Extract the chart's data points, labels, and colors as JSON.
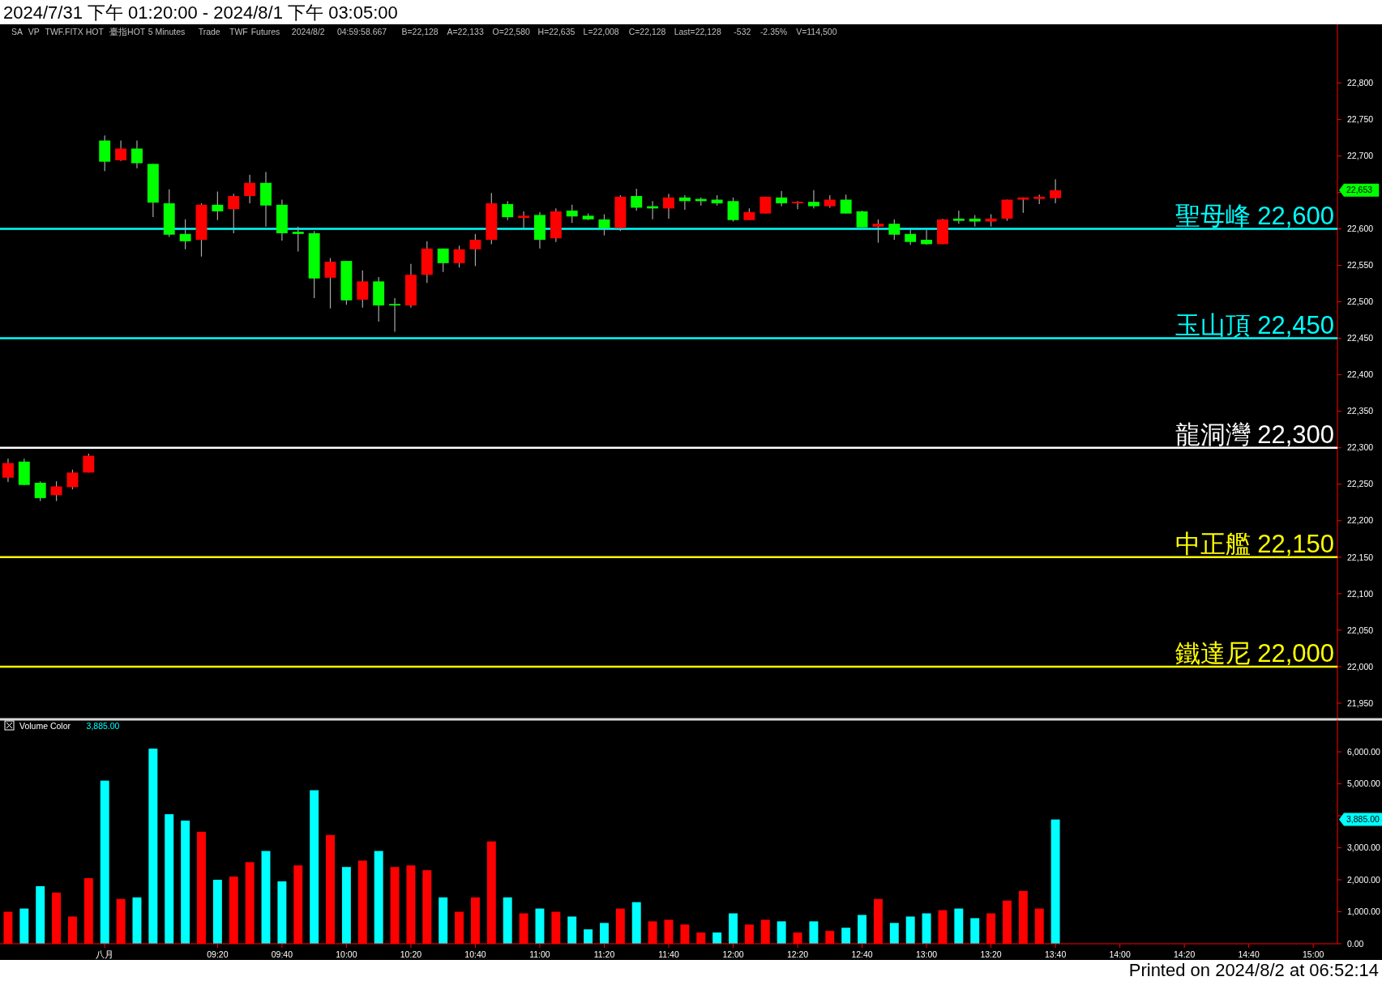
{
  "chart_data": [
    {
      "type": "candlestick",
      "title": "2024/7/31 下午 01:20:00 - 2024/8/1 下午 03:05:00",
      "annotations": [
        "SA",
        "VP",
        "TWF.FITX HOT",
        "臺指HOT",
        "5 Minutes",
        "Trade",
        "TWF",
        "Futures",
        "2024/8/2",
        "04:59:58.667",
        "B=22,128",
        "A=22,133",
        "O=22,580",
        "H=22,635",
        "L=22,008",
        "C=22,128",
        "Last=22,128",
        "-532",
        "-2.35%",
        "V=114,500",
        "22,653"
      ],
      "ohlc": [
        [
          22259,
          22285,
          22253,
          22279
        ],
        [
          22281,
          22285,
          22249,
          22249
        ],
        [
          22252,
          22254,
          22227,
          22231
        ],
        [
          22235,
          22254,
          22227,
          22247
        ],
        [
          22246,
          22270,
          22243,
          22266
        ],
        [
          22266,
          22292,
          22266,
          22289
        ],
        [
          22721,
          22728,
          22679,
          22692
        ],
        [
          22694,
          22721,
          22693,
          22710
        ],
        [
          22710,
          22721,
          22683,
          22690
        ],
        [
          22689,
          22689,
          22616,
          22636
        ],
        [
          22635,
          22654,
          22589,
          22592
        ],
        [
          22593,
          22613,
          22572,
          22583
        ],
        [
          22585,
          22635,
          22562,
          22633
        ],
        [
          22633,
          22651,
          22612,
          22624
        ],
        [
          22627,
          22648,
          22594,
          22645
        ],
        [
          22645,
          22674,
          22635,
          22663
        ],
        [
          22663,
          22678,
          22603,
          22632
        ],
        [
          22633,
          22640,
          22584,
          22594
        ],
        [
          22596,
          22603,
          22569,
          22593
        ],
        [
          22594,
          22597,
          22505,
          22532
        ],
        [
          22533,
          22560,
          22491,
          22555
        ],
        [
          22556,
          22556,
          22496,
          22502
        ],
        [
          22503,
          22543,
          22492,
          22528
        ],
        [
          22528,
          22534,
          22473,
          22495
        ],
        [
          22497,
          22505,
          22459,
          22495
        ],
        [
          22495,
          22552,
          22492,
          22537
        ],
        [
          22537,
          22583,
          22526,
          22573
        ],
        [
          22573,
          22573,
          22541,
          22553
        ],
        [
          22553,
          22577,
          22547,
          22572
        ],
        [
          22572,
          22593,
          22549,
          22585
        ],
        [
          22585,
          22649,
          22579,
          22635
        ],
        [
          22634,
          22638,
          22612,
          22616
        ],
        [
          22615,
          22624,
          22601,
          22618
        ],
        [
          22619,
          22623,
          22573,
          22585
        ],
        [
          22587,
          22628,
          22582,
          22624
        ],
        [
          22625,
          22633,
          22608,
          22617
        ],
        [
          22618,
          22621,
          22612,
          22613
        ],
        [
          22613,
          22620,
          22591,
          22601
        ],
        [
          22601,
          22646,
          22597,
          22644
        ],
        [
          22645,
          22655,
          22625,
          22629
        ],
        [
          22631,
          22638,
          22613,
          22628
        ],
        [
          22628,
          22648,
          22614,
          22643
        ],
        [
          22643,
          22646,
          22626,
          22638
        ],
        [
          22641,
          22643,
          22632,
          22638
        ],
        [
          22640,
          22646,
          22632,
          22635
        ],
        [
          22638,
          22643,
          22610,
          22612
        ],
        [
          22612,
          22628,
          22612,
          22623
        ],
        [
          22621,
          22644,
          22621,
          22644
        ],
        [
          22643,
          22652,
          22631,
          22635
        ],
        [
          22635,
          22638,
          22627,
          22637
        ],
        [
          22637,
          22653,
          22628,
          22631
        ],
        [
          22631,
          22646,
          22629,
          22640
        ],
        [
          22640,
          22647,
          22621,
          22621
        ],
        [
          22624,
          22625,
          22602,
          22602
        ],
        [
          22603,
          22613,
          22581,
          22607
        ],
        [
          22607,
          22613,
          22585,
          22592
        ],
        [
          22593,
          22599,
          22578,
          22582
        ],
        [
          22585,
          22599,
          22578,
          22579
        ],
        [
          22579,
          22614,
          22579,
          22613
        ],
        [
          22614,
          22625,
          22607,
          22611
        ],
        [
          22614,
          22619,
          22603,
          22610
        ],
        [
          22610,
          22620,
          22603,
          22614
        ],
        [
          22614,
          22640,
          22611,
          22640
        ],
        [
          22640,
          22643,
          22622,
          22643
        ],
        [
          22641,
          22647,
          22634,
          22644
        ],
        [
          22642,
          22668,
          22635,
          22653
        ],
        null,
        null,
        null,
        null,
        null,
        null,
        null,
        null,
        null,
        null,
        null,
        null,
        null,
        null,
        null,
        null,
        null
      ],
      "colors": [
        "#ff0000",
        "#00ff00",
        "#00ff00",
        "#ff0000",
        "#ff0000",
        "#ff0000",
        "#00ff00",
        "#ff0000",
        "#00ff00",
        "#00ff00",
        "#00ff00",
        "#00ff00",
        "#ff0000",
        "#00ff00",
        "#ff0000",
        "#ff0000",
        "#00ff00",
        "#00ff00",
        "#00ff00",
        "#00ff00",
        "#ff0000",
        "#00ff00",
        "#ff0000",
        "#00ff00",
        "#00ff00",
        "#ff0000",
        "#ff0000",
        "#00ff00",
        "#ff0000",
        "#ff0000",
        "#ff0000",
        "#00ff00",
        "#ff0000",
        "#00ff00",
        "#ff0000",
        "#00ff00",
        "#00ff00",
        "#00ff00",
        "#ff0000",
        "#00ff00",
        "#00ff00",
        "#ff0000",
        "#00ff00",
        "#00ff00",
        "#00ff00",
        "#00ff00",
        "#ff0000",
        "#ff0000",
        "#00ff00",
        "#ff0000",
        "#00ff00",
        "#ff0000",
        "#00ff00",
        "#00ff00",
        "#ff0000",
        "#00ff00",
        "#00ff00",
        "#00ff00",
        "#ff0000",
        "#00ff00",
        "#00ff00",
        "#ff0000",
        "#ff0000",
        "#ff0000",
        "#ff0000",
        "#ff0000",
        null,
        null,
        null,
        null,
        null,
        null,
        null,
        null,
        null,
        null,
        null,
        null,
        null,
        null,
        null,
        null,
        null
      ],
      "ylim": [
        21930,
        22877
      ],
      "yticks": [
        {
          "value": 21950,
          "label": "21,950"
        },
        {
          "value": 22000,
          "label": "22,000"
        },
        {
          "value": 22050,
          "label": "22,050"
        },
        {
          "value": 22100,
          "label": "22,100"
        },
        {
          "value": 22150,
          "label": "22,150"
        },
        {
          "value": 22200,
          "label": "22,200"
        },
        {
          "value": 22250,
          "label": "22,250"
        },
        {
          "value": 22300,
          "label": "22,300"
        },
        {
          "value": 22350,
          "label": "22,350"
        },
        {
          "value": 22400,
          "label": "22,400"
        },
        {
          "value": 22450,
          "label": "22,450"
        },
        {
          "value": 22500,
          "label": "22,500"
        },
        {
          "value": 22550,
          "label": "22,550"
        },
        {
          "value": 22600,
          "label": "22,600"
        },
        {
          "value": 22650,
          "label": null
        },
        {
          "value": 22700,
          "label": "22,700"
        },
        {
          "value": 22750,
          "label": "22,750"
        },
        {
          "value": 22800,
          "label": "22,800"
        }
      ],
      "ref_lines": [
        {
          "axis": "y",
          "value": 22600,
          "label": "聖母峰 22,600",
          "color": "#00ffff"
        },
        {
          "axis": "y",
          "value": 22450,
          "label": "玉山頂 22,450",
          "color": "#00ffff"
        },
        {
          "axis": "y",
          "value": 22300,
          "label": "龍洞灣 22,300",
          "color": "#ffffff"
        },
        {
          "axis": "y",
          "value": 22150,
          "label": "中正艦 22,150",
          "color": "#ffff00"
        },
        {
          "axis": "y",
          "value": 22000,
          "label": "鐵達尼 22,000",
          "color": "#ffff00"
        }
      ],
      "tick_labels": "y"
    },
    {
      "type": "bar",
      "title": "Volume Color",
      "annotations": [
        "3,885.00",
        "3,885.00",
        "Printed on 2024/8/2 at 06:52:14"
      ],
      "categories": [
        null,
        null,
        null,
        null,
        null,
        null,
        "八月",
        null,
        null,
        null,
        null,
        null,
        null,
        "09:20",
        null,
        null,
        null,
        "09:40",
        null,
        null,
        null,
        "10:00",
        null,
        null,
        null,
        "10:20",
        null,
        null,
        null,
        "10:40",
        null,
        null,
        null,
        "11:00",
        null,
        null,
        null,
        "11:20",
        null,
        null,
        null,
        "11:40",
        null,
        null,
        null,
        "12:00",
        null,
        null,
        null,
        "12:20",
        null,
        null,
        null,
        "12:40",
        null,
        null,
        null,
        "13:00",
        null,
        null,
        null,
        "13:20",
        null,
        null,
        null,
        "13:40",
        null,
        null,
        null,
        "14:00",
        null,
        null,
        null,
        "14:20",
        null,
        null,
        null,
        "14:40",
        null,
        null,
        null,
        "15:00",
        null
      ],
      "values": [
        1000,
        1100,
        1800,
        1600,
        850,
        2050,
        5100,
        1400,
        1450,
        6100,
        4050,
        3850,
        3500,
        2000,
        2100,
        2550,
        2900,
        1950,
        2450,
        4800,
        3400,
        2400,
        2600,
        2900,
        2400,
        2450,
        2300,
        1450,
        1000,
        1450,
        3200,
        1450,
        950,
        1100,
        1000,
        850,
        450,
        650,
        1100,
        1300,
        700,
        750,
        600,
        350,
        350,
        950,
        600,
        750,
        700,
        350,
        700,
        400,
        500,
        900,
        1400,
        650,
        850,
        950,
        1050,
        1100,
        800,
        950,
        1350,
        1650,
        1100,
        3885,
        null,
        null,
        null,
        null,
        null,
        null,
        null,
        null,
        null,
        null,
        null,
        null,
        null,
        null,
        null,
        null,
        null
      ],
      "colors": [
        "#ff0000",
        "#00ffff",
        "#00ffff",
        "#ff0000",
        "#ff0000",
        "#ff0000",
        "#00ffff",
        "#ff0000",
        "#00ffff",
        "#00ffff",
        "#00ffff",
        "#00ffff",
        "#ff0000",
        "#00ffff",
        "#ff0000",
        "#ff0000",
        "#00ffff",
        "#00ffff",
        "#ff0000",
        "#00ffff",
        "#ff0000",
        "#00ffff",
        "#ff0000",
        "#00ffff",
        "#ff0000",
        "#ff0000",
        "#ff0000",
        "#00ffff",
        "#ff0000",
        "#ff0000",
        "#ff0000",
        "#00ffff",
        "#ff0000",
        "#00ffff",
        "#ff0000",
        "#00ffff",
        "#00ffff",
        "#00ffff",
        "#ff0000",
        "#00ffff",
        "#ff0000",
        "#ff0000",
        "#ff0000",
        "#ff0000",
        "#00ffff",
        "#00ffff",
        "#ff0000",
        "#ff0000",
        "#00ffff",
        "#ff0000",
        "#00ffff",
        "#ff0000",
        "#00ffff",
        "#00ffff",
        "#ff0000",
        "#00ffff",
        "#00ffff",
        "#00ffff",
        "#ff0000",
        "#00ffff",
        "#00ffff",
        "#ff0000",
        "#ff0000",
        "#ff0000",
        "#ff0000",
        "#00ffff",
        null,
        null,
        null,
        null,
        null,
        null,
        null,
        null,
        null,
        null,
        null,
        null,
        null,
        null,
        null,
        null,
        null
      ],
      "ylim": [
        0,
        6940
      ],
      "yticks": [
        {
          "value": 0,
          "label": "0.00"
        },
        {
          "value": 1000,
          "label": "1,000.00"
        },
        {
          "value": 2000,
          "label": "2,000.00"
        },
        {
          "value": 3000,
          "label": "3,000.00"
        },
        {
          "value": 4000,
          "label": null
        },
        {
          "value": 5000,
          "label": "5,000.00"
        },
        {
          "value": 6000,
          "label": "6,000.00"
        }
      ]
    }
  ]
}
